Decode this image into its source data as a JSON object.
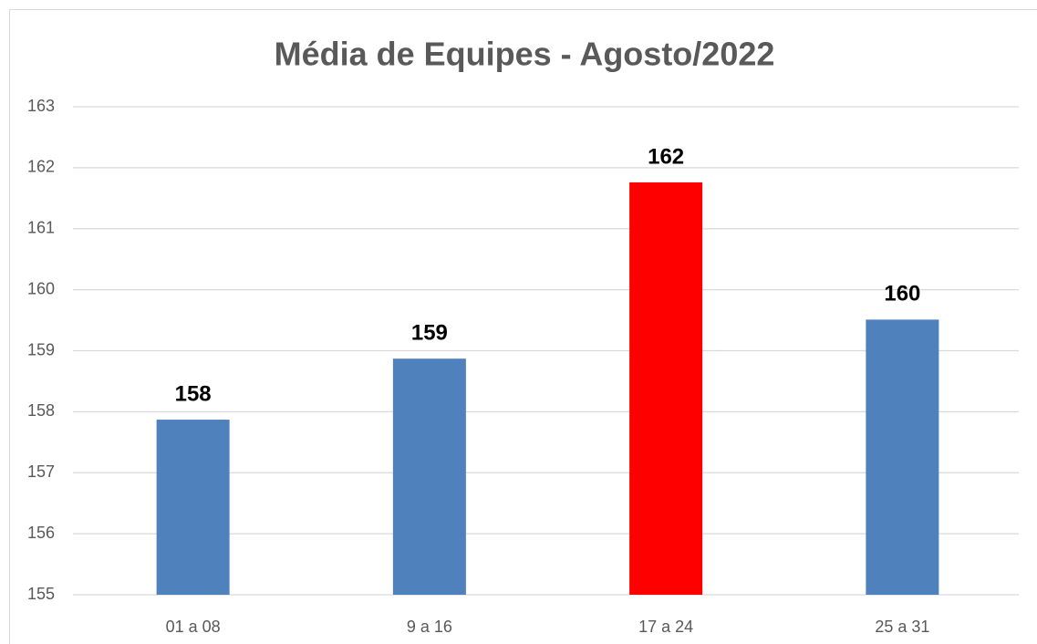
{
  "chart_data": {
    "type": "bar",
    "title": "Média de Equipes - Agosto/2022",
    "categories": [
      "01 a 08",
      "9 a 16",
      "17 a 24",
      "25 a 31"
    ],
    "values": [
      157.87,
      158.87,
      161.76,
      159.51
    ],
    "value_labels": [
      "158",
      "159",
      "162",
      "160"
    ],
    "colors": [
      "#4f81bd",
      "#4f81bd",
      "#ff0000",
      "#4f81bd"
    ],
    "ylim": [
      155,
      163
    ],
    "yticks": [
      155,
      156,
      157,
      158,
      159,
      160,
      161,
      162,
      163
    ],
    "grid": true
  }
}
